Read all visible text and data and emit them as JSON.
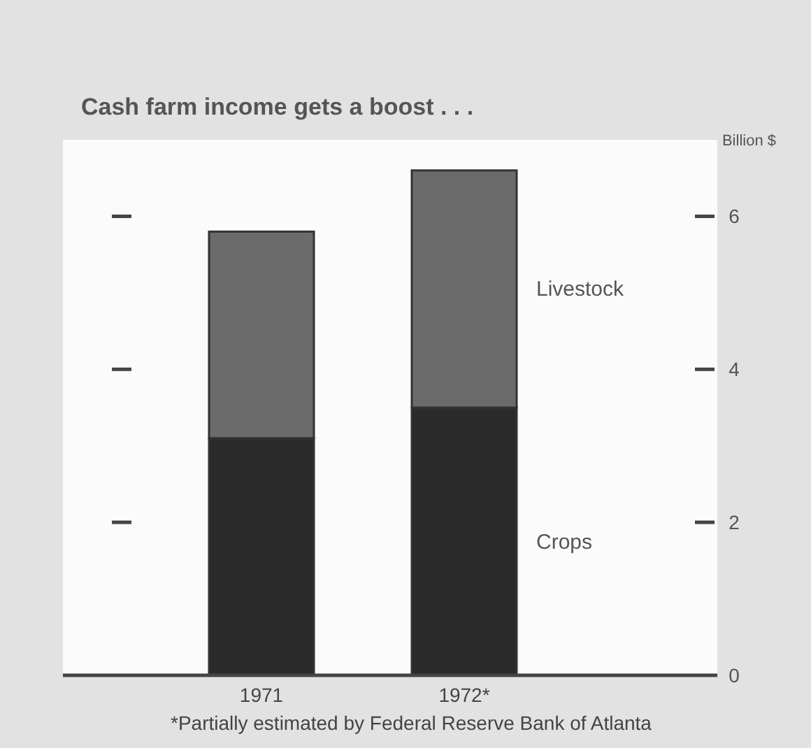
{
  "chart_data": {
    "type": "bar",
    "title": "Cash farm income gets a boost . . .",
    "ylabel": "Billion $",
    "categories": [
      "1971",
      "1972*"
    ],
    "stacked": true,
    "series": [
      {
        "name": "Crops",
        "color": "#2b2b2b",
        "values": [
          3.1,
          3.5
        ]
      },
      {
        "name": "Livestock",
        "color": "#6b6b6b",
        "values": [
          2.7,
          3.1
        ]
      }
    ],
    "ylim": [
      0,
      7
    ],
    "yticks": [
      0,
      2,
      4,
      6
    ],
    "grid": false,
    "annotations": [
      "*Partially estimated by Federal Reserve Bank of Atlanta"
    ]
  }
}
